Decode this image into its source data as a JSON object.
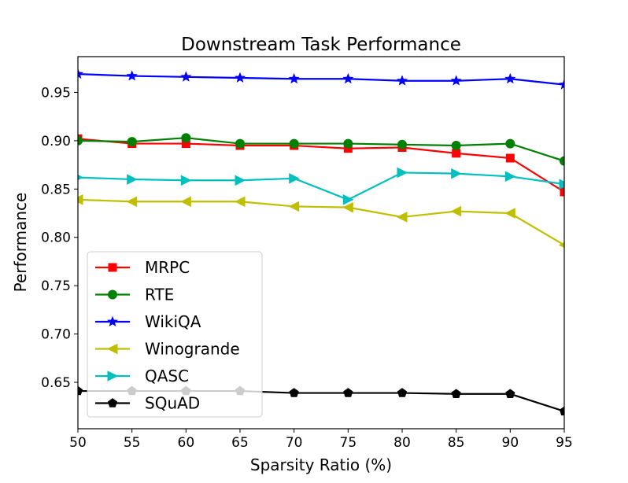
{
  "chart_data": {
    "type": "line",
    "title": "Downstream Task Performance",
    "xlabel": "Sparsity Ratio (%)",
    "ylabel": "Performance",
    "x": [
      50,
      55,
      60,
      65,
      70,
      75,
      80,
      85,
      90,
      95
    ],
    "xlim": [
      50,
      95
    ],
    "ylim": [
      0.602,
      0.987
    ],
    "xticks": [
      "50",
      "55",
      "60",
      "65",
      "70",
      "75",
      "80",
      "85",
      "90",
      "95"
    ],
    "yticks": [
      "0.65",
      "0.70",
      "0.75",
      "0.80",
      "0.85",
      "0.90",
      "0.95"
    ],
    "grid": false,
    "legend_position": "lower-left",
    "series": [
      {
        "name": "MRPC",
        "color": "#ff0000",
        "marker": "square",
        "values": [
          0.902,
          0.897,
          0.897,
          0.895,
          0.895,
          0.892,
          0.893,
          0.887,
          0.882,
          0.847
        ]
      },
      {
        "name": "RTE",
        "color": "#008000",
        "marker": "circle",
        "values": [
          0.9,
          0.899,
          0.903,
          0.897,
          0.897,
          0.897,
          0.896,
          0.895,
          0.897,
          0.879
        ]
      },
      {
        "name": "WikiQA",
        "color": "#0000ff",
        "marker": "star",
        "values": [
          0.969,
          0.967,
          0.966,
          0.965,
          0.964,
          0.964,
          0.962,
          0.962,
          0.964,
          0.958
        ]
      },
      {
        "name": "Winogrande",
        "color": "#bfbf00",
        "marker": "triangle-left",
        "values": [
          0.839,
          0.837,
          0.837,
          0.837,
          0.832,
          0.831,
          0.821,
          0.827,
          0.825,
          0.792
        ]
      },
      {
        "name": "QASC",
        "color": "#00bfbf",
        "marker": "triangle-right",
        "values": [
          0.862,
          0.86,
          0.859,
          0.859,
          0.861,
          0.839,
          0.867,
          0.866,
          0.863,
          0.855
        ]
      },
      {
        "name": "SQuAD",
        "color": "#000000",
        "marker": "pentagon",
        "values": [
          0.641,
          0.641,
          0.641,
          0.641,
          0.639,
          0.639,
          0.639,
          0.638,
          0.638,
          0.62
        ]
      }
    ]
  }
}
